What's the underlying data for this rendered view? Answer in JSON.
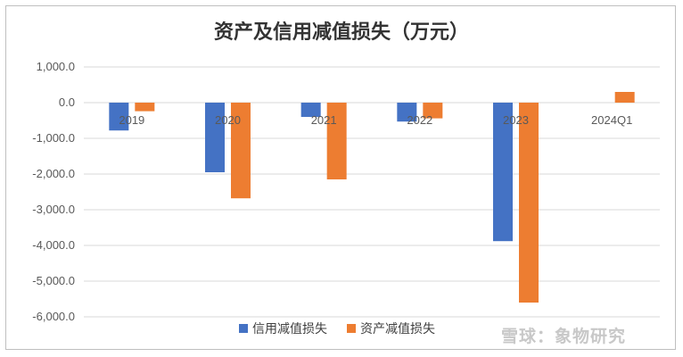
{
  "chart_data": {
    "type": "bar",
    "title": "资产及信用减值损失（万元）",
    "categories": [
      "2019",
      "2020",
      "2021",
      "2022",
      "2023",
      "2024Q1"
    ],
    "series": [
      {
        "name": "信用减值损失",
        "values": [
          -780,
          -1950,
          -400,
          -530,
          -3880,
          0
        ],
        "color": "#4472C4"
      },
      {
        "name": "资产减值损失",
        "values": [
          -240,
          -2680,
          -2150,
          -440,
          -5600,
          300
        ],
        "color": "#ED7D31"
      }
    ],
    "ylim": [
      -6000,
      1000
    ],
    "yticks": [
      "1,000.0",
      "0.0",
      "-1,000.0",
      "-2,000.0",
      "-3,000.0",
      "-4,000.0",
      "-5,000.0",
      "-6,000.0"
    ],
    "ytick_values": [
      1000,
      0,
      -1000,
      -2000,
      -3000,
      -4000,
      -5000,
      -6000
    ],
    "grid": true,
    "legend_position": "bottom"
  },
  "watermark": "雪球：象物研究"
}
